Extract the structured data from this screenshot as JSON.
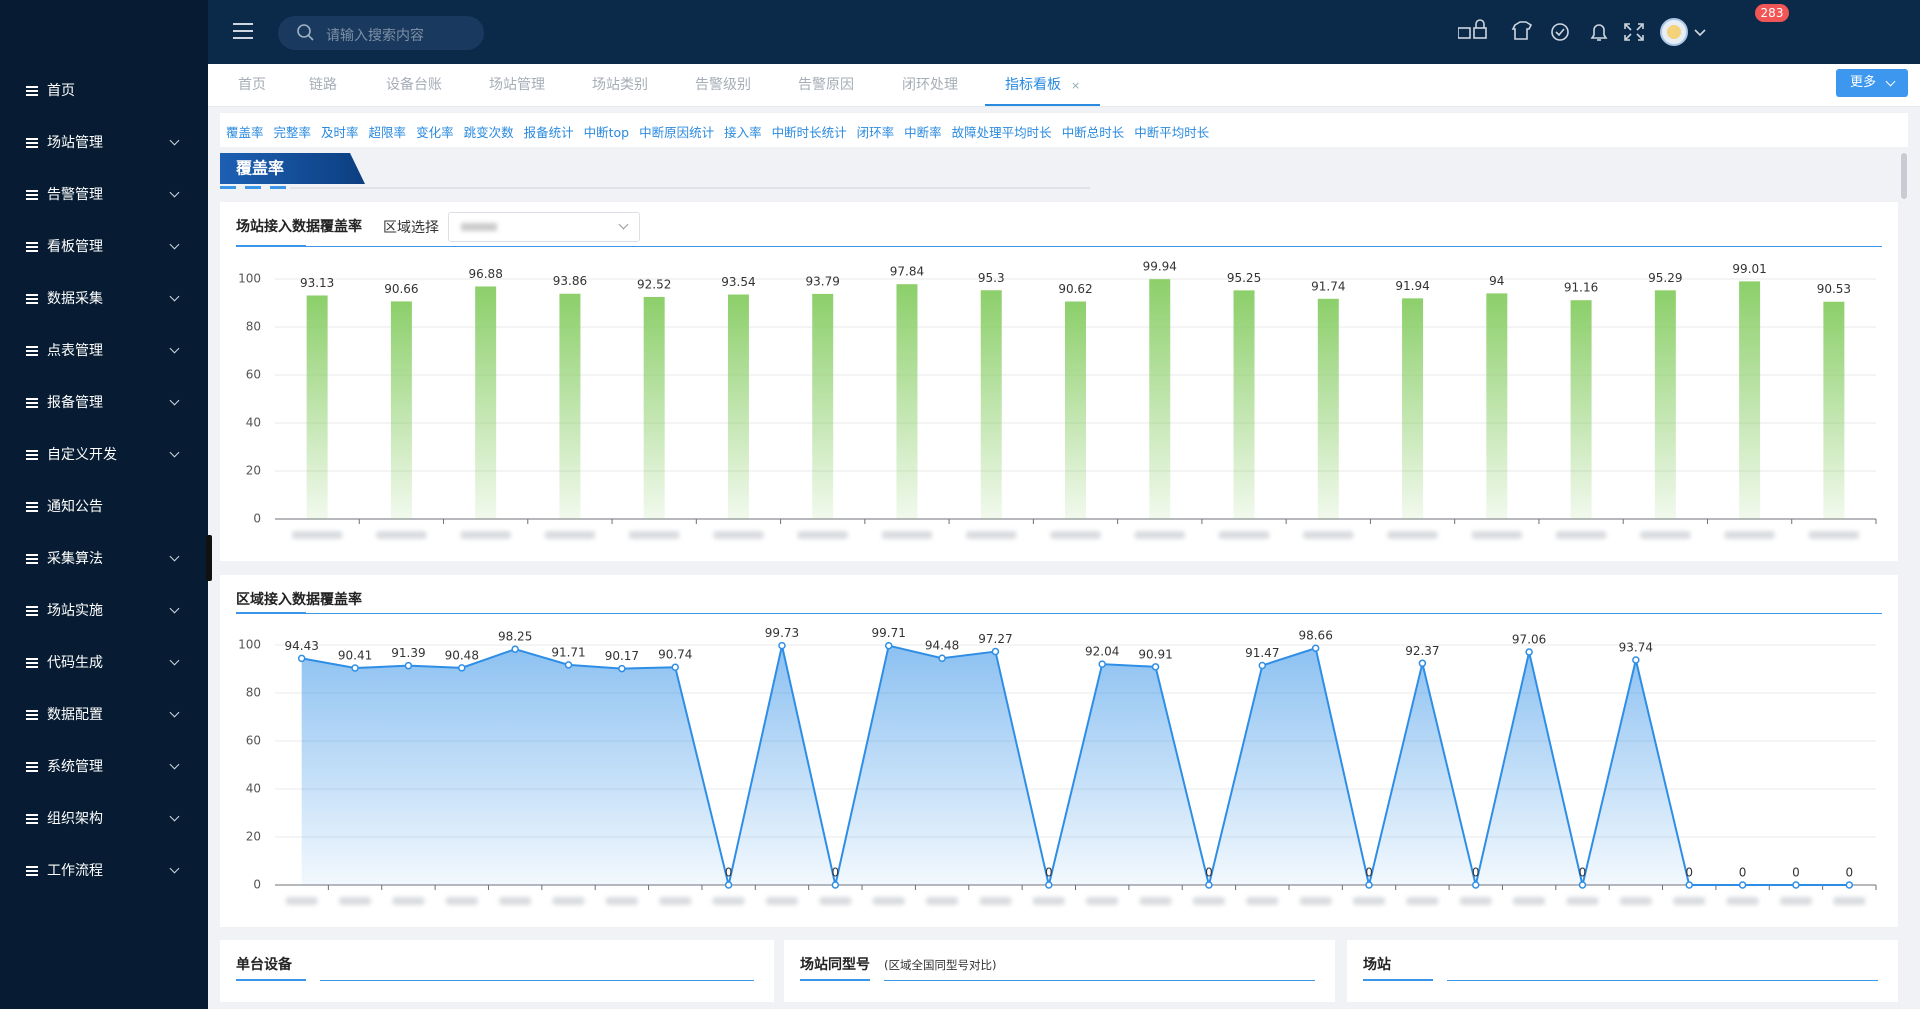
{
  "sidebar": {
    "items": [
      {
        "label": "首页",
        "expandable": false
      },
      {
        "label": "场站管理",
        "expandable": true
      },
      {
        "label": "告警管理",
        "expandable": true
      },
      {
        "label": "看板管理",
        "expandable": true
      },
      {
        "label": "数据采集",
        "expandable": true
      },
      {
        "label": "点表管理",
        "expandable": true
      },
      {
        "label": "报备管理",
        "expandable": true
      },
      {
        "label": "自定义开发",
        "expandable": true
      },
      {
        "label": "通知公告",
        "expandable": false
      },
      {
        "label": "采集算法",
        "expandable": true
      },
      {
        "label": "场站实施",
        "expandable": true
      },
      {
        "label": "代码生成",
        "expandable": true
      },
      {
        "label": "数据配置",
        "expandable": true
      },
      {
        "label": "系统管理",
        "expandable": true
      },
      {
        "label": "组织架构",
        "expandable": true
      },
      {
        "label": "工作流程",
        "expandable": true
      }
    ]
  },
  "header": {
    "search_placeholder": "请输入搜索内容",
    "badge": "283"
  },
  "tabs": {
    "items": [
      "首页",
      "链路",
      "设备台账",
      "场站管理",
      "场站类别",
      "告警级别",
      "告警原因",
      "闭环处理",
      "指标看板"
    ],
    "active": 8,
    "more": "更多"
  },
  "subtabs": [
    "覆盖率",
    "完整率",
    "及时率",
    "超限率",
    "变化率",
    "跳变次数",
    "报备统计",
    "中断top",
    "中断原因统计",
    "接入率",
    "中断时长统计",
    "闭环率",
    "中断率",
    "故障处理平均时长",
    "中断总时长",
    "中断平均时长"
  ],
  "section": {
    "title": "覆盖率"
  },
  "filter": {
    "label": "区域选择"
  },
  "chart_data": [
    {
      "type": "bar",
      "title": "场站接入数据覆盖率",
      "color": "#8ccf6a",
      "categories": [
        null,
        null,
        null,
        null,
        null,
        null,
        null,
        null,
        null,
        null,
        null,
        null,
        null,
        null,
        null,
        null,
        null,
        null,
        null
      ],
      "values": [
        93.13,
        90.66,
        96.88,
        93.86,
        92.52,
        93.54,
        93.79,
        97.84,
        95.3,
        90.62,
        99.94,
        95.25,
        91.74,
        91.94,
        94,
        91.16,
        95.29,
        99.01,
        90.53
      ],
      "ylim": [
        0,
        100
      ],
      "yticks": [
        0,
        20,
        40,
        60,
        80,
        100
      ],
      "grid": true
    },
    {
      "type": "line",
      "title": "区域接入数据覆盖率",
      "color": "#2e8ee6",
      "categories": [
        null,
        null,
        null,
        null,
        null,
        null,
        null,
        null,
        null,
        null,
        null,
        null,
        null,
        null,
        null,
        null,
        null,
        null,
        null,
        null,
        null,
        null,
        null,
        null,
        null,
        null,
        null,
        null,
        null,
        null
      ],
      "values": [
        94.43,
        90.41,
        91.39,
        90.48,
        98.25,
        91.71,
        90.17,
        90.74,
        0,
        99.73,
        0,
        99.71,
        94.48,
        97.27,
        0,
        92.04,
        90.91,
        0,
        91.47,
        98.66,
        0,
        92.37,
        0,
        97.06,
        0,
        93.74,
        0,
        0,
        0,
        0
      ],
      "ylim": [
        0,
        100
      ],
      "yticks": [
        0,
        20,
        40,
        60,
        80,
        100
      ],
      "grid": true
    }
  ],
  "bottom_panels": [
    {
      "title": "单台设备"
    },
    {
      "title": "场站同型号",
      "note": "(区域全国同型号对比)"
    },
    {
      "title": "场站"
    }
  ]
}
